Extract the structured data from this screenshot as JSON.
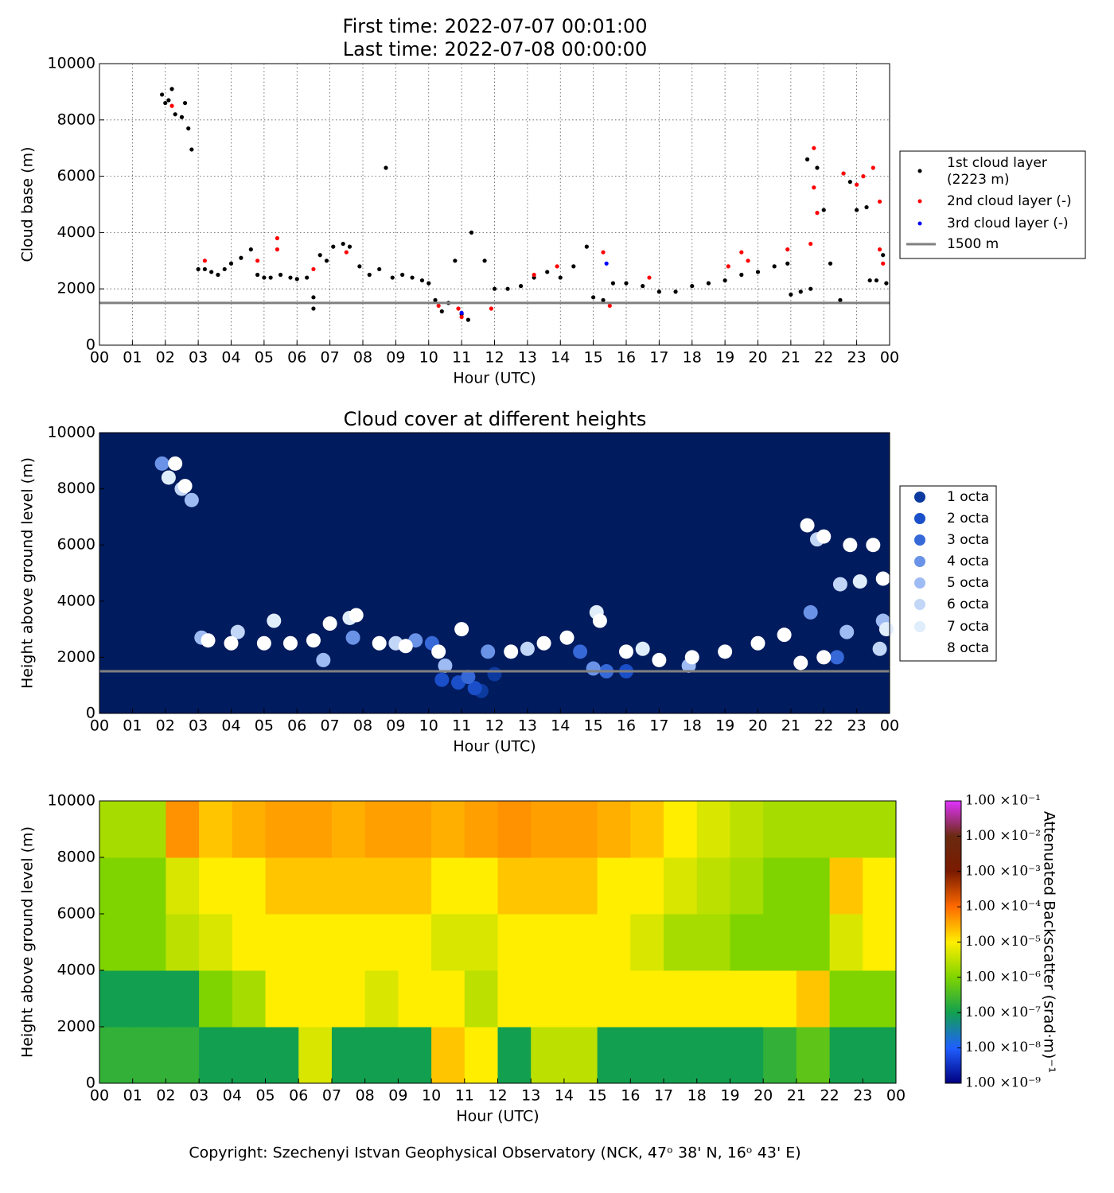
{
  "chart_data": [
    {
      "type": "scatter",
      "title": "First time: 2022-07-07 00:01:00",
      "subtitle": "Last time: 2022-07-08 00:00:00",
      "xlabel": "Hour (UTC)",
      "ylabel": "Cloud base (m)",
      "grid": true,
      "background": "#ffffff",
      "xlim": [
        0,
        24
      ],
      "ylim": [
        0,
        10000
      ],
      "xticks": [
        {
          "value": 0,
          "label": "00"
        },
        {
          "value": 1,
          "label": "01"
        },
        {
          "value": 2,
          "label": "02"
        },
        {
          "value": 3,
          "label": "03"
        },
        {
          "value": 4,
          "label": "04"
        },
        {
          "value": 5,
          "label": "05"
        },
        {
          "value": 6,
          "label": "06"
        },
        {
          "value": 7,
          "label": "07"
        },
        {
          "value": 8,
          "label": "08"
        },
        {
          "value": 9,
          "label": "09"
        },
        {
          "value": 10,
          "label": "10"
        },
        {
          "value": 11,
          "label": "11"
        },
        {
          "value": 12,
          "label": "12"
        },
        {
          "value": 13,
          "label": "13"
        },
        {
          "value": 14,
          "label": "14"
        },
        {
          "value": 15,
          "label": "15"
        },
        {
          "value": 16,
          "label": "16"
        },
        {
          "value": 17,
          "label": "17"
        },
        {
          "value": 18,
          "label": "18"
        },
        {
          "value": 19,
          "label": "19"
        },
        {
          "value": 20,
          "label": "20"
        },
        {
          "value": 21,
          "label": "21"
        },
        {
          "value": 22,
          "label": "22"
        },
        {
          "value": 23,
          "label": "23"
        },
        {
          "value": 24,
          "label": "00"
        }
      ],
      "yticks": [
        0,
        2000,
        4000,
        6000,
        8000,
        10000
      ],
      "series": [
        {
          "name": "1st cloud layer\n(2223 m)",
          "color": "#000000",
          "x": [
            1.9,
            2.0,
            2.1,
            2.2,
            2.3,
            2.5,
            2.6,
            2.7,
            2.8,
            3.0,
            3.2,
            3.4,
            3.6,
            3.8,
            4.0,
            4.3,
            4.6,
            4.8,
            5.0,
            5.2,
            5.5,
            5.8,
            6.0,
            6.3,
            6.5,
            6.5,
            6.7,
            6.9,
            7.1,
            7.4,
            7.6,
            7.9,
            8.2,
            8.5,
            8.7,
            8.9,
            9.2,
            9.5,
            9.8,
            10.0,
            10.2,
            10.4,
            10.6,
            10.8,
            11.0,
            11.2,
            11.3,
            11.7,
            12.0,
            12.4,
            12.8,
            13.2,
            13.6,
            14.0,
            14.4,
            14.8,
            15.0,
            15.3,
            15.6,
            16.0,
            16.5,
            17.0,
            17.5,
            18.0,
            18.5,
            19.0,
            19.5,
            20.0,
            20.5,
            20.9,
            21.0,
            21.3,
            21.6,
            21.5,
            21.8,
            22.0,
            22.2,
            22.5,
            22.6,
            22.8,
            23.0,
            23.3,
            23.4,
            23.6,
            23.8,
            23.9
          ],
          "y": [
            8900,
            8600,
            8700,
            9100,
            8200,
            8100,
            8600,
            7700,
            6950,
            2700,
            2700,
            2600,
            2500,
            2700,
            2900,
            3100,
            3400,
            2500,
            2400,
            2400,
            2500,
            2400,
            2350,
            2400,
            1700,
            1300,
            3200,
            3000,
            3500,
            3600,
            3500,
            2800,
            2500,
            2700,
            6300,
            2400,
            2500,
            2400,
            2300,
            2200,
            1600,
            1200,
            1500,
            3000,
            1100,
            900,
            4000,
            3000,
            2000,
            2000,
            2100,
            2400,
            2600,
            2400,
            2800,
            3500,
            1700,
            1600,
            2200,
            2200,
            2100,
            1900,
            1900,
            2100,
            2200,
            2300,
            2500,
            2600,
            2800,
            2900,
            1800,
            1900,
            2000,
            6600,
            6300,
            4800,
            2900,
            1600,
            6100,
            5800,
            4800,
            4900,
            2300,
            2300,
            3200,
            2200
          ]
        },
        {
          "name": "2nd cloud layer (-)",
          "color": "#ff0000",
          "x": [
            2.2,
            3.2,
            4.8,
            5.4,
            5.4,
            6.5,
            7.5,
            10.3,
            10.9,
            11.0,
            11.9,
            13.2,
            13.9,
            15.3,
            15.5,
            16.7,
            19.1,
            19.5,
            19.7,
            20.9,
            21.6,
            21.7,
            21.7,
            21.8,
            22.6,
            23.0,
            23.2,
            23.5,
            23.7,
            23.8,
            23.7
          ],
          "y": [
            8500,
            3000,
            3000,
            3800,
            3400,
            2700,
            3300,
            1400,
            1300,
            1000,
            1300,
            2500,
            2800,
            3300,
            1400,
            2400,
            2800,
            3300,
            3000,
            3400,
            3600,
            7000,
            5600,
            4700,
            6100,
            5700,
            6000,
            6300,
            5100,
            2900,
            3400
          ]
        },
        {
          "name": "3rd cloud layer (-)",
          "color": "#0000ff",
          "x": [
            11.0,
            15.4
          ],
          "y": [
            1150,
            2900
          ]
        }
      ],
      "hline": {
        "value": 1500,
        "name": "1500 m",
        "color": "#808080"
      }
    },
    {
      "type": "scatter",
      "title": "Cloud cover at different heights",
      "xlabel": "Hour (UTC)",
      "ylabel": "Height above ground level (m)",
      "grid": false,
      "background": "#001b5e",
      "xlim": [
        0,
        24
      ],
      "ylim": [
        0,
        10000
      ],
      "xticks": [
        {
          "value": 0,
          "label": "00"
        },
        {
          "value": 1,
          "label": "01"
        },
        {
          "value": 2,
          "label": "02"
        },
        {
          "value": 3,
          "label": "03"
        },
        {
          "value": 4,
          "label": "04"
        },
        {
          "value": 5,
          "label": "05"
        },
        {
          "value": 6,
          "label": "06"
        },
        {
          "value": 7,
          "label": "07"
        },
        {
          "value": 8,
          "label": "08"
        },
        {
          "value": 9,
          "label": "09"
        },
        {
          "value": 10,
          "label": "10"
        },
        {
          "value": 11,
          "label": "11"
        },
        {
          "value": 12,
          "label": "12"
        },
        {
          "value": 13,
          "label": "13"
        },
        {
          "value": 14,
          "label": "14"
        },
        {
          "value": 15,
          "label": "15"
        },
        {
          "value": 16,
          "label": "16"
        },
        {
          "value": 17,
          "label": "17"
        },
        {
          "value": 18,
          "label": "18"
        },
        {
          "value": 19,
          "label": "19"
        },
        {
          "value": 20,
          "label": "20"
        },
        {
          "value": 21,
          "label": "21"
        },
        {
          "value": 22,
          "label": "22"
        },
        {
          "value": 23,
          "label": "23"
        },
        {
          "value": 24,
          "label": "00"
        }
      ],
      "yticks": [
        0,
        2000,
        4000,
        6000,
        8000,
        10000
      ],
      "series": [
        {
          "name": "1 octa",
          "color": "#0d3a9e",
          "x": [
            11.6,
            12.0
          ],
          "y": [
            800,
            1400
          ]
        },
        {
          "name": "2 octa",
          "color": "#1a4fc9",
          "x": [
            10.4,
            10.9,
            11.4,
            16.0
          ],
          "y": [
            1200,
            1100,
            900,
            1500
          ]
        },
        {
          "name": "3 octa",
          "color": "#3668d8",
          "x": [
            10.1,
            11.2,
            14.6,
            15.4,
            22.4
          ],
          "y": [
            2500,
            1300,
            2200,
            1500,
            2000
          ]
        },
        {
          "name": "4 octa",
          "color": "#6a93e8",
          "x": [
            1.9,
            7.7,
            9.6,
            11.8,
            15.0,
            21.6
          ],
          "y": [
            8900,
            2700,
            2600,
            2200,
            1600,
            3600
          ]
        },
        {
          "name": "5 octa",
          "color": "#9fbbf3",
          "x": [
            2.8,
            3.1,
            6.8,
            10.5,
            17.9,
            22.7,
            23.8
          ],
          "y": [
            7600,
            2700,
            1900,
            1700,
            1700,
            2900,
            3300
          ]
        },
        {
          "name": "6 octa",
          "color": "#c2d6f7",
          "x": [
            2.5,
            4.2,
            9.0,
            13.0,
            21.8,
            22.5,
            23.7
          ],
          "y": [
            8000,
            2900,
            2500,
            2300,
            6200,
            4600,
            2300
          ]
        },
        {
          "name": "7 octa",
          "color": "#e0edfb",
          "x": [
            2.1,
            5.3,
            7.6,
            15.1,
            23.1,
            23.9,
            16.5
          ],
          "y": [
            8400,
            3300,
            3400,
            3600,
            4700,
            3000,
            2300
          ]
        },
        {
          "name": "8 octa",
          "color": "#ffffff",
          "x": [
            2.3,
            2.6,
            3.3,
            4.0,
            5.0,
            5.8,
            6.5,
            7.0,
            7.8,
            8.5,
            9.3,
            10.3,
            11.0,
            12.5,
            13.5,
            14.2,
            15.2,
            16.0,
            17.0,
            18.0,
            19.0,
            20.0,
            20.8,
            21.5,
            22.0,
            22.8,
            23.5,
            23.8,
            21.3,
            22.0
          ],
          "y": [
            8900,
            8100,
            2600,
            2500,
            2500,
            2500,
            2600,
            3200,
            3500,
            2500,
            2400,
            2200,
            3000,
            2200,
            2500,
            2700,
            3300,
            2200,
            1900,
            2000,
            2200,
            2500,
            2800,
            6700,
            6300,
            6000,
            6000,
            4800,
            1800,
            2000
          ]
        }
      ],
      "hline": {
        "value": 1500,
        "color": "#808080"
      }
    },
    {
      "type": "heatmap",
      "xlabel": "Hour (UTC)",
      "ylabel": "Height above ground level (m)",
      "colorbar_label": "Attenuated Backscatter (srad·m)⁻¹",
      "log_color": true,
      "xlim": [
        0,
        24
      ],
      "ylim": [
        0,
        10000
      ],
      "zlim": [
        1e-09,
        0.1
      ],
      "xticks": [
        {
          "value": 0,
          "label": "00"
        },
        {
          "value": 1,
          "label": "01"
        },
        {
          "value": 2,
          "label": "02"
        },
        {
          "value": 3,
          "label": "03"
        },
        {
          "value": 4,
          "label": "04"
        },
        {
          "value": 5,
          "label": "05"
        },
        {
          "value": 6,
          "label": "06"
        },
        {
          "value": 7,
          "label": "07"
        },
        {
          "value": 8,
          "label": "08"
        },
        {
          "value": 9,
          "label": "09"
        },
        {
          "value": 10,
          "label": "10"
        },
        {
          "value": 11,
          "label": "11"
        },
        {
          "value": 12,
          "label": "12"
        },
        {
          "value": 13,
          "label": "13"
        },
        {
          "value": 14,
          "label": "14"
        },
        {
          "value": 15,
          "label": "15"
        },
        {
          "value": 16,
          "label": "16"
        },
        {
          "value": 17,
          "label": "17"
        },
        {
          "value": 18,
          "label": "18"
        },
        {
          "value": 19,
          "label": "19"
        },
        {
          "value": 20,
          "label": "20"
        },
        {
          "value": 21,
          "label": "21"
        },
        {
          "value": 22,
          "label": "22"
        },
        {
          "value": 23,
          "label": "23"
        },
        {
          "value": 24,
          "label": "00"
        }
      ],
      "yticks": [
        0,
        2000,
        4000,
        6000,
        8000,
        10000
      ],
      "zticks": [
        {
          "value": 1e-09,
          "label": "1.00 ×10⁻⁹"
        },
        {
          "value": 1e-08,
          "label": "1.00 ×10⁻⁸"
        },
        {
          "value": 1e-07,
          "label": "1.00 ×10⁻⁷"
        },
        {
          "value": 1e-06,
          "label": "1.00 ×10⁻⁶"
        },
        {
          "value": 1e-05,
          "label": "1.00 ×10⁻⁵"
        },
        {
          "value": 0.0001,
          "label": "1.00 ×10⁻⁴"
        },
        {
          "value": 0.001,
          "label": "1.00 ×10⁻³"
        },
        {
          "value": 0.01,
          "label": "1.00 ×10⁻²"
        },
        {
          "value": 0.1,
          "label": "1.00 ×10⁻¹"
        }
      ],
      "xbins": [
        0,
        1,
        2,
        3,
        4,
        5,
        6,
        7,
        8,
        9,
        10,
        11,
        12,
        13,
        14,
        15,
        16,
        17,
        18,
        19,
        20,
        21,
        22,
        23,
        24
      ],
      "ybins": [
        0,
        2000,
        4000,
        6000,
        8000,
        10000
      ],
      "z": [
        [
          2e-07,
          2e-07,
          2e-07,
          1e-07,
          1e-07,
          1e-07,
          5e-06,
          1e-07,
          1e-07,
          1e-07,
          2e-05,
          1e-05,
          1e-07,
          3e-06,
          3e-06,
          1e-07,
          1e-07,
          1e-07,
          1e-07,
          1e-07,
          2e-07,
          5e-07,
          1e-07,
          1e-07
        ],
        [
          1e-07,
          1e-07,
          1e-07,
          1e-06,
          2e-06,
          1e-05,
          1e-05,
          1e-05,
          5e-06,
          1e-05,
          1e-05,
          3e-06,
          1e-05,
          1e-05,
          1e-05,
          1e-05,
          1e-05,
          1e-05,
          1e-05,
          1e-05,
          1e-05,
          2e-05,
          1e-06,
          1e-06
        ],
        [
          1e-06,
          1e-06,
          3e-06,
          5e-06,
          1e-05,
          1e-05,
          1e-05,
          1e-05,
          1e-05,
          1e-05,
          5e-06,
          5e-06,
          1e-05,
          1e-05,
          1e-05,
          1e-05,
          5e-06,
          2e-06,
          2e-06,
          1e-06,
          1e-06,
          1e-06,
          5e-06,
          1e-05
        ],
        [
          1e-06,
          1e-06,
          5e-06,
          1e-05,
          1e-05,
          2e-05,
          2e-05,
          2e-05,
          2e-05,
          2e-05,
          1e-05,
          1e-05,
          2e-05,
          2e-05,
          2e-05,
          1e-05,
          1e-05,
          5e-06,
          3e-06,
          2e-06,
          1e-06,
          1e-06,
          2e-05,
          1e-05
        ],
        [
          2e-06,
          2e-06,
          5e-05,
          2e-05,
          3e-05,
          4e-05,
          4e-05,
          3e-05,
          4e-05,
          4e-05,
          3e-05,
          4e-05,
          5e-05,
          4e-05,
          4e-05,
          3e-05,
          2e-05,
          1e-05,
          5e-06,
          3e-06,
          2e-06,
          2e-06,
          2e-06,
          2e-06
        ]
      ]
    }
  ],
  "footer": "Copyright: Szechenyi Istvan Geophysical Observatory (NCK, 47ᵒ 38' N, 16ᵒ 43' E)"
}
